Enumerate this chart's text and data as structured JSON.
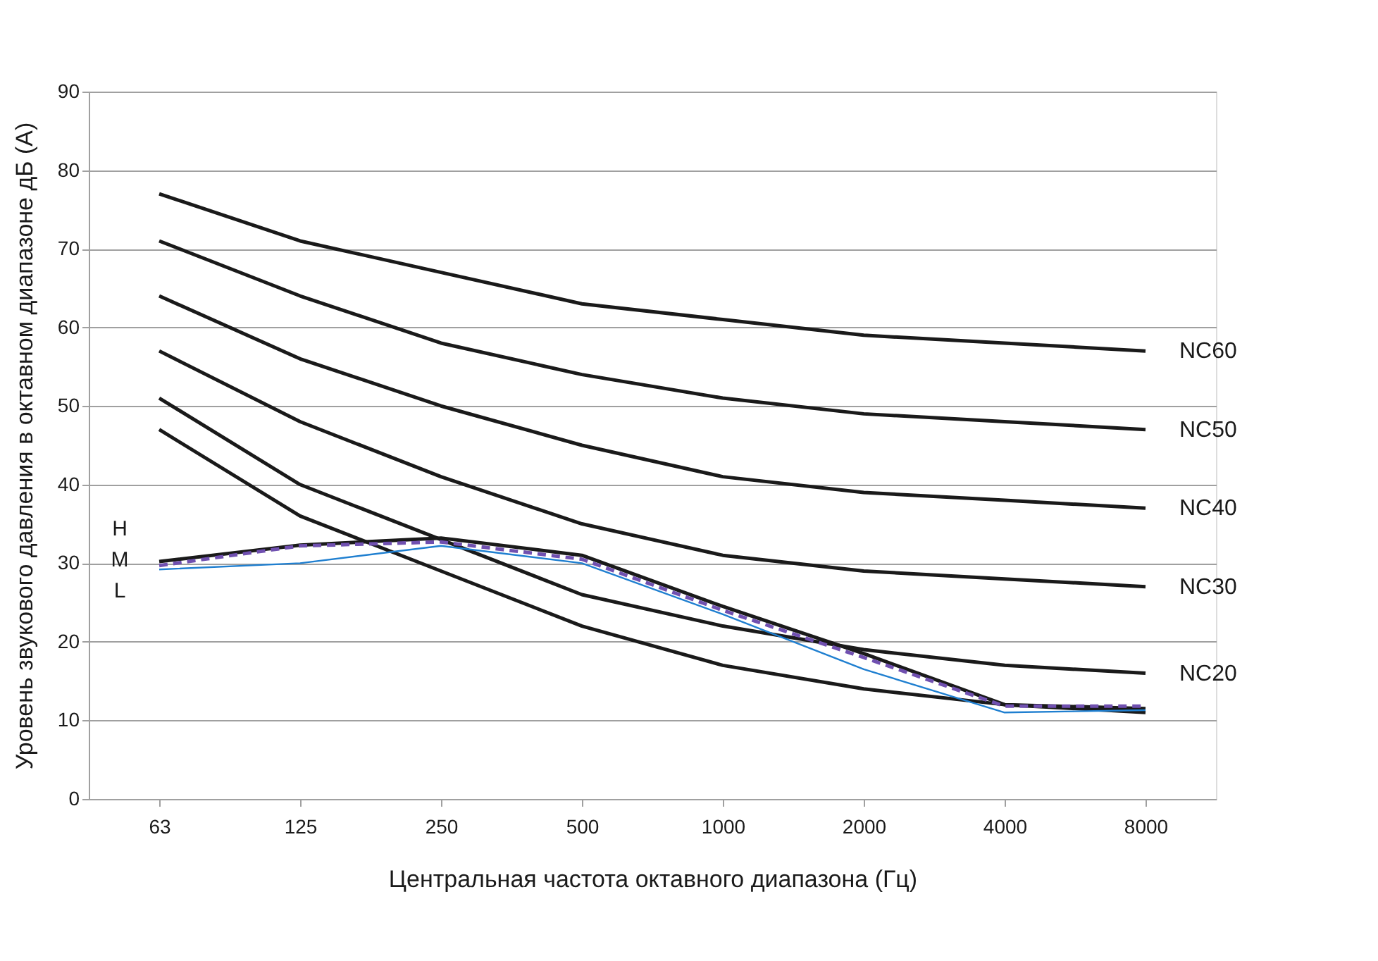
{
  "chart_data": {
    "type": "line",
    "xlabel": "Центральная частота октавного диапазона (Гц)",
    "ylabel": "Уровень звукового давления в октавном диапазоне дБ (А)",
    "categories": [
      "63",
      "125",
      "250",
      "500",
      "1000",
      "2000",
      "4000",
      "8000"
    ],
    "ylim": [
      0,
      90
    ],
    "yticks": [
      0,
      10,
      20,
      30,
      40,
      50,
      60,
      70,
      80,
      90
    ],
    "grid": "y",
    "legend": false,
    "marker": "none",
    "series": [
      {
        "name": "NC60",
        "color": "#1a1a1a",
        "line_style": "solid",
        "values": [
          77,
          71,
          67,
          63,
          61,
          59,
          58,
          57
        ]
      },
      {
        "name": "NC50",
        "color": "#1a1a1a",
        "line_style": "solid",
        "values": [
          71,
          64,
          58,
          54,
          51,
          49,
          48,
          47
        ]
      },
      {
        "name": "NC40",
        "color": "#1a1a1a",
        "line_style": "solid",
        "values": [
          64,
          56,
          50,
          45,
          41,
          39,
          38,
          37
        ]
      },
      {
        "name": "NC30",
        "color": "#1a1a1a",
        "line_style": "solid",
        "values": [
          57,
          48,
          41,
          35,
          31,
          29,
          28,
          27
        ]
      },
      {
        "name": "NC20",
        "color": "#1a1a1a",
        "line_style": "solid",
        "values": [
          51,
          40,
          33,
          26,
          22,
          19,
          17,
          16
        ]
      },
      {
        "color": "#1a1a1a",
        "line_style": "solid",
        "values": [
          47,
          36,
          29,
          22,
          17,
          14,
          12,
          11
        ]
      },
      {
        "color": "#1a1a1a",
        "line_style": "solid",
        "values": [
          30.2,
          32.3,
          33.2,
          31,
          24.5,
          18.5,
          12,
          11.5
        ]
      },
      {
        "color": "#7050b0",
        "line_style": "dashed",
        "values": [
          29.7,
          32.2,
          32.7,
          30.5,
          24,
          18,
          11.8,
          11.8
        ]
      },
      {
        "color": "#1f7fd0",
        "line_style": "solid",
        "values": [
          29.2,
          30,
          32.2,
          30,
          23.5,
          16.5,
          11,
          11.3
        ]
      }
    ],
    "annotations": [
      "H",
      "M",
      "L"
    ]
  }
}
